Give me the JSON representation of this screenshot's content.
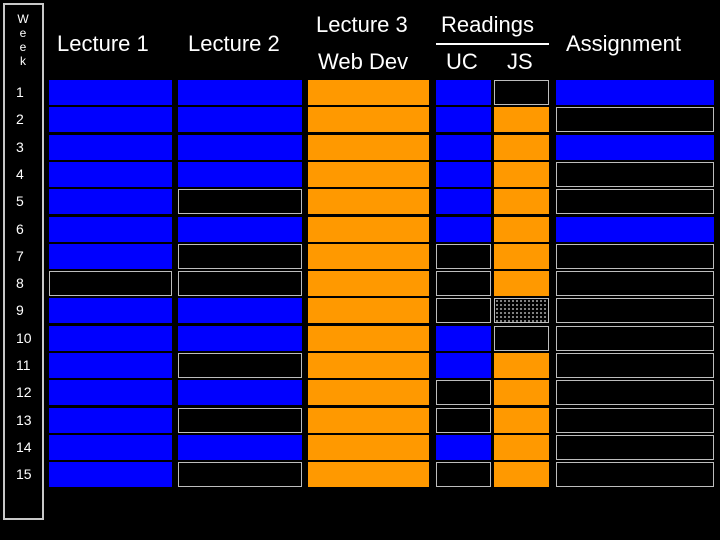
{
  "headers": {
    "week_letters": [
      "W",
      "e",
      "e",
      "k"
    ],
    "lecture1": "Lecture 1",
    "lecture2": "Lecture 2",
    "lecture3": "Lecture 3",
    "web_dev": "Web Dev",
    "readings": "Readings",
    "uc": "UC",
    "js": "JS",
    "assignment": "Assignment"
  },
  "colors": {
    "blue": "#0000ff",
    "orange": "#ff9900",
    "black": "#000000",
    "grid_line": "#bdbdbd"
  },
  "rows": [
    {
      "week": "1",
      "lecture1": "blue",
      "lecture2": "blue",
      "lecture3": "orange",
      "uc": "blue",
      "js": "black",
      "assignment": "blue"
    },
    {
      "week": "2",
      "lecture1": "blue",
      "lecture2": "blue",
      "lecture3": "orange",
      "uc": "blue",
      "js": "orange",
      "assignment": "black"
    },
    {
      "week": "3",
      "lecture1": "blue",
      "lecture2": "blue",
      "lecture3": "orange",
      "uc": "blue",
      "js": "orange",
      "assignment": "blue"
    },
    {
      "week": "4",
      "lecture1": "blue",
      "lecture2": "blue",
      "lecture3": "orange",
      "uc": "blue",
      "js": "orange",
      "assignment": "black"
    },
    {
      "week": "5",
      "lecture1": "blue",
      "lecture2": "black",
      "lecture3": "orange",
      "uc": "blue",
      "js": "orange",
      "assignment": "black"
    },
    {
      "week": "6",
      "lecture1": "blue",
      "lecture2": "blue",
      "lecture3": "orange",
      "uc": "blue",
      "js": "orange",
      "assignment": "blue"
    },
    {
      "week": "7",
      "lecture1": "blue",
      "lecture2": "black",
      "lecture3": "orange",
      "uc": "black",
      "js": "orange",
      "assignment": "black"
    },
    {
      "week": "8",
      "lecture1": "black",
      "lecture2": "black",
      "lecture3": "orange",
      "uc": "black",
      "js": "orange",
      "assignment": "black"
    },
    {
      "week": "9",
      "lecture1": "blue",
      "lecture2": "blue",
      "lecture3": "orange",
      "uc": "black",
      "js": "dotted",
      "assignment": "black"
    },
    {
      "week": "10",
      "lecture1": "blue",
      "lecture2": "blue",
      "lecture3": "orange",
      "uc": "blue",
      "js": "black",
      "assignment": "black"
    },
    {
      "week": "11",
      "lecture1": "blue",
      "lecture2": "black",
      "lecture3": "orange",
      "uc": "blue",
      "js": "orange",
      "assignment": "black"
    },
    {
      "week": "12",
      "lecture1": "blue",
      "lecture2": "blue",
      "lecture3": "orange",
      "uc": "black",
      "js": "orange",
      "assignment": "black"
    },
    {
      "week": "13",
      "lecture1": "blue",
      "lecture2": "black",
      "lecture3": "orange",
      "uc": "black",
      "js": "orange",
      "assignment": "black"
    },
    {
      "week": "14",
      "lecture1": "blue",
      "lecture2": "blue",
      "lecture3": "orange",
      "uc": "blue",
      "js": "orange",
      "assignment": "black"
    },
    {
      "week": "15",
      "lecture1": "blue",
      "lecture2": "black",
      "lecture3": "orange",
      "uc": "black",
      "js": "orange",
      "assignment": "black"
    }
  ]
}
